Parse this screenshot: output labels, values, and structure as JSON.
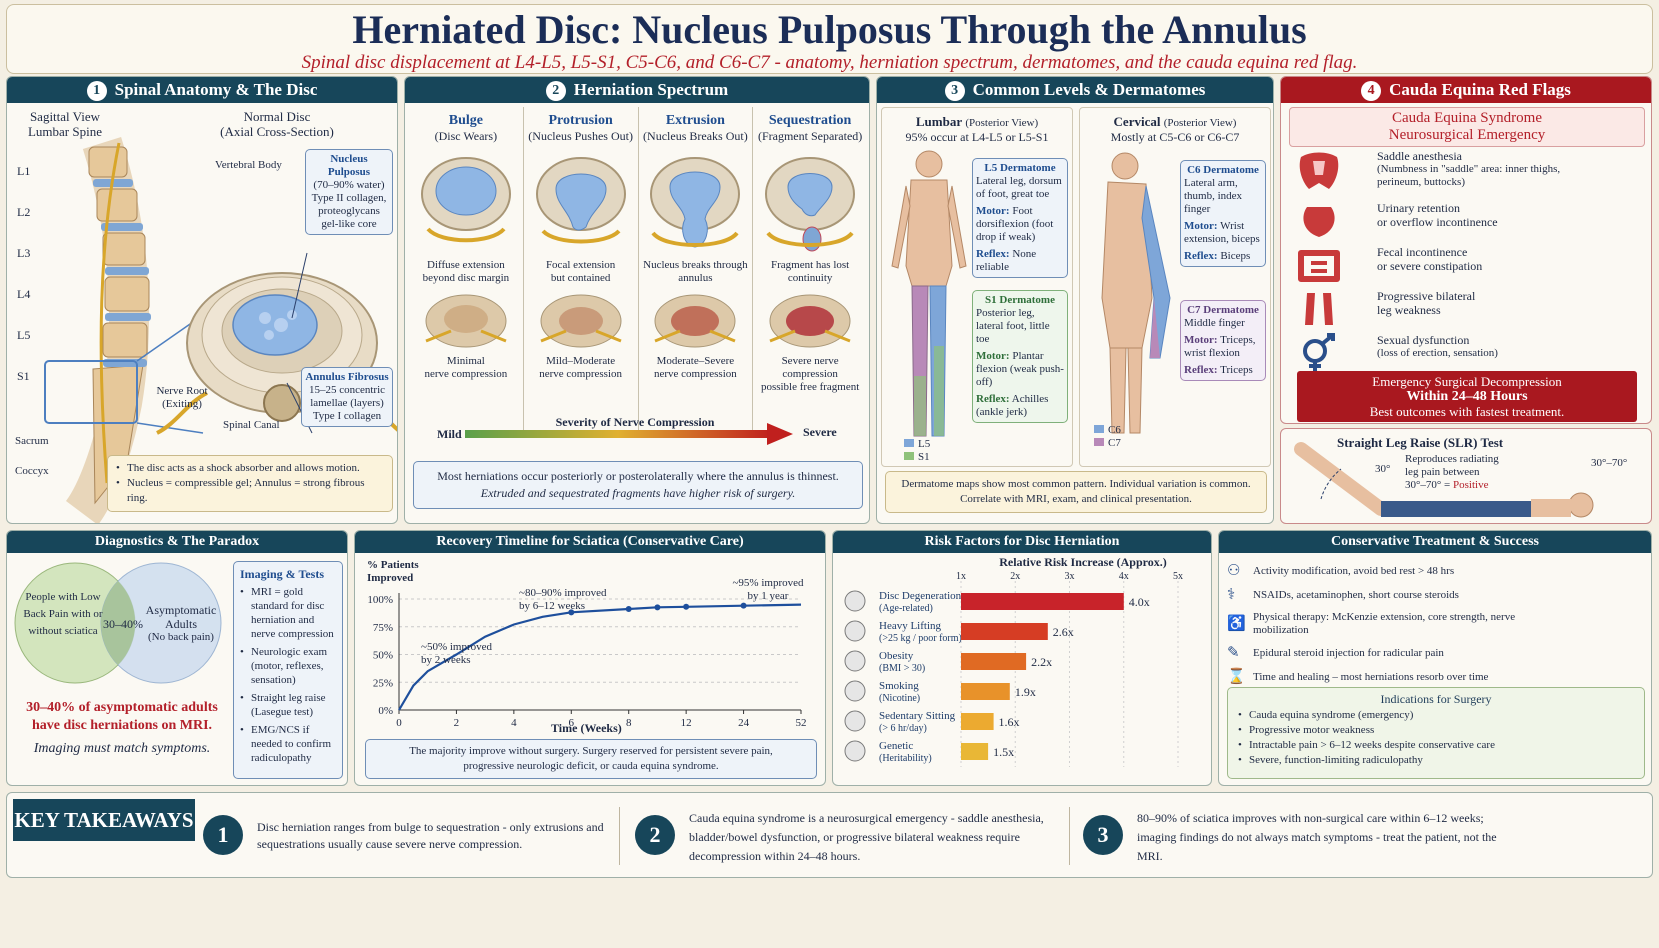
{
  "header": {
    "title": "Herniated Disc: Nucleus Pulposus Through the Annulus",
    "subtitle": "Spinal disc displacement at L4-L5, L5-S1, C5-C6, and C6-C7 - anatomy, herniation spectrum, dermatomes, and the cauda equina red flag."
  },
  "p1": {
    "num": "1",
    "title": "Spinal Anatomy & The Disc",
    "sagittal": "Sagittal View",
    "lumbar": "Lumbar Spine",
    "normal": "Normal Disc",
    "axial": "(Axial Cross-Section)",
    "vertebral_body": "Vertebral Body",
    "levels": [
      "L1",
      "L2",
      "L3",
      "L4",
      "L5",
      "S1"
    ],
    "sacrum": "Sacrum",
    "coccyx": "Coccyx",
    "nerve_root": "Nerve Root",
    "exiting": "(Exiting)",
    "spinal_canal": "Spinal Canal",
    "np": {
      "title": "Nucleus Pulposus",
      "l1": "(70–90% water)",
      "l2": "Type II collagen,",
      "l3": "proteoglycans",
      "l4": "gel-like core"
    },
    "af": {
      "title": "Annulus Fibrosus",
      "l1": "15–25 concentric",
      "l2": "lamellae (layers)",
      "l3": "Type I collagen"
    },
    "notes": [
      "The disc acts as a shock absorber and allows motion.",
      "Nucleus = compressible gel; Annulus = strong fibrous ring."
    ]
  },
  "p2": {
    "num": "2",
    "title": "Herniation Spectrum",
    "stages": [
      {
        "name": "Bulge",
        "sub": "(Disc Wears)",
        "desc1": "Diffuse extension",
        "desc2": "beyond disc margin",
        "comp1": "Minimal",
        "comp2": "nerve compression"
      },
      {
        "name": "Protrusion",
        "sub": "(Nucleus Pushes Out)",
        "desc1": "Focal extension",
        "desc2": "but contained",
        "comp1": "Mild–Moderate",
        "comp2": "nerve compression"
      },
      {
        "name": "Extrusion",
        "sub": "(Nucleus Breaks Out)",
        "desc1": "Nucleus breaks through",
        "desc2": "annulus",
        "comp1": "Moderate–Severe",
        "comp2": "nerve compression"
      },
      {
        "name": "Sequestration",
        "sub": "(Fragment Separated)",
        "desc1": "Fragment has lost",
        "desc2": "continuity",
        "comp1": "Severe nerve compression",
        "comp2": "possible free fragment"
      }
    ],
    "severity": "Severity of Nerve Compression",
    "mild": "Mild",
    "severe": "Severe",
    "note1": "Most herniations occur posteriorly or posterolaterally where the annulus is thinnest.",
    "note2": "Extruded and sequestrated fragments have higher risk of surgery."
  },
  "p3": {
    "num": "3",
    "title": "Common Levels & Dermatomes",
    "lumbar": {
      "title": "Lumbar",
      "view": "(Posterior View)",
      "sub": "95% occur at L4-L5 or L5-S1"
    },
    "cervical": {
      "title": "Cervical",
      "view": "(Posterior View)",
      "sub": "Mostly at C5-C6 or C6-C7"
    },
    "derms": [
      {
        "title": "L5 Dermatome",
        "desc": "Lateral leg, dorsum of foot, great toe",
        "motor_label": "Motor:",
        "motor": "Foot dorsiflexion (foot drop if weak)",
        "reflex_label": "Reflex:",
        "reflex": "None reliable"
      },
      {
        "title": "S1 Dermatome",
        "desc": "Posterior leg, lateral foot, little toe",
        "motor_label": "Motor:",
        "motor": "Plantar flexion (weak push-off)",
        "reflex_label": "Reflex:",
        "reflex": "Achilles (ankle jerk)"
      },
      {
        "title": "C6 Dermatome",
        "desc": "Lateral arm, thumb, index finger",
        "motor_label": "Motor:",
        "motor": "Wrist extension, biceps",
        "reflex_label": "Reflex:",
        "reflex": "Biceps"
      },
      {
        "title": "C7 Dermatome",
        "desc": "Middle finger",
        "motor_label": "Motor:",
        "motor": "Triceps, wrist flexion",
        "reflex_label": "Reflex:",
        "reflex": "Triceps"
      }
    ],
    "legend": [
      "L5",
      "S1",
      "C6",
      "C7"
    ],
    "note1": "Dermatome maps show most common pattern. Individual variation is common.",
    "note2": "Correlate with MRI, exam, and clinical presentation."
  },
  "p4": {
    "num": "4",
    "title": "Cauda Equina Red Flags",
    "ces1": "Cauda Equina Syndrome",
    "ces2": "Neurosurgical Emergency",
    "flags": [
      {
        "t": "Saddle anesthesia",
        "d": "(Numbness in \"saddle\" area: inner thighs, perineum, buttocks)"
      },
      {
        "t": "Urinary retention",
        "d": "or overflow incontinence"
      },
      {
        "t": "Fecal incontinence",
        "d": "or severe constipation"
      },
      {
        "t": "Progressive bilateral",
        "d": "leg weakness"
      },
      {
        "t": "Sexual dysfunction",
        "d": "(loss of erection, sensation)"
      }
    ],
    "em1": "Emergency Surgical Decompression",
    "em2": "Within 24–48 Hours",
    "em3": "Best outcomes with fastest treatment.",
    "slr": {
      "title": "Straight Leg Raise (SLR) Test",
      "a30": "30°",
      "arange": "30°–70°",
      "d1": "Reproduces radiating",
      "d2": "leg pain between",
      "d3": "30°–70° =",
      "pos": "Positive"
    }
  },
  "diag": {
    "title": "Diagnostics & The Paradox",
    "venn_left": "People with Low Back Pain with or without sciatica",
    "venn_mid": "30–40%",
    "venn_right1": "Asymptomatic Adults",
    "venn_right2": "(No back pain)",
    "stat": "30–40% of asymptomatic adults have disc herniations on MRI.",
    "match": "Imaging must match symptoms.",
    "tests_title": "Imaging & Tests",
    "tests": [
      "MRI = gold standard for disc herniation and nerve compression",
      "Neurologic exam (motor, reflexes, sensation)",
      "Straight leg raise (Lasegue test)",
      "EMG/NCS if needed to confirm radiculopathy"
    ]
  },
  "recovery": {
    "title": "Recovery Timeline for Sciatica (Conservative Care)",
    "note1": "The majority improve without surgery. Surgery reserved for persistent severe pain,",
    "note2": "progressive neurologic deficit, or cauda equina syndrome.",
    "chart_data": {
      "type": "line",
      "ylabel": "% Patients Improved",
      "xlabel": "Time (Weeks)",
      "x_ticks": [
        "0",
        "2",
        "4",
        "6",
        "8",
        "12",
        "24",
        "52"
      ],
      "y_ticks": [
        "0%",
        "25%",
        "50%",
        "75%",
        "100%"
      ],
      "ylim": [
        0,
        100
      ],
      "points": [
        {
          "x": 0,
          "y": 0
        },
        {
          "x": 0.5,
          "y": 22
        },
        {
          "x": 1,
          "y": 35
        },
        {
          "x": 2,
          "y": 50
        },
        {
          "x": 3,
          "y": 66
        },
        {
          "x": 4,
          "y": 77
        },
        {
          "x": 5,
          "y": 84
        },
        {
          "x": 6,
          "y": 88
        },
        {
          "x": 8,
          "y": 91
        },
        {
          "x": 10,
          "y": 92.5
        },
        {
          "x": 12,
          "y": 93
        },
        {
          "x": 24,
          "y": 94
        },
        {
          "x": 52,
          "y": 95
        }
      ],
      "markers": [
        {
          "x": 6,
          "y": 88
        },
        {
          "x": 8,
          "y": 91
        },
        {
          "x": 10,
          "y": 92.5
        },
        {
          "x": 12,
          "y": 93
        },
        {
          "x": 24,
          "y": 94
        }
      ],
      "annotations": [
        {
          "text1": "~50% improved",
          "text2": "by 2 weeks"
        },
        {
          "text1": "~80–90% improved",
          "text2": "by 6–12 weeks"
        },
        {
          "text1": "~95% improved",
          "text2": "by 1 year"
        }
      ]
    }
  },
  "risk": {
    "title": "Risk Factors for Disc Herniation",
    "chart_data": {
      "type": "bar",
      "title": "Relative Risk Increase (Approx.)",
      "x_ticks": [
        "1x",
        "2x",
        "3x",
        "4x",
        "5x"
      ],
      "xlim": [
        1,
        5
      ],
      "bars": [
        {
          "name": "Disc Degeneration",
          "sub": "(Age-related)",
          "value": 4.0,
          "label": "4.0x",
          "color": "#c8232a"
        },
        {
          "name": "Heavy Lifting",
          "sub": "(>25 kg / poor form)",
          "value": 2.6,
          "label": "2.6x",
          "color": "#d63d24"
        },
        {
          "name": "Obesity",
          "sub": "(BMI > 30)",
          "value": 2.2,
          "label": "2.2x",
          "color": "#e06a23"
        },
        {
          "name": "Smoking",
          "sub": "(Nicotine)",
          "value": 1.9,
          "label": "1.9x",
          "color": "#e8922a"
        },
        {
          "name": "Sedentary Sitting",
          "sub": "(> 6 hr/day)",
          "value": 1.6,
          "label": "1.6x",
          "color": "#ecaa30"
        },
        {
          "name": "Genetic",
          "sub": "(Heritability)",
          "value": 1.5,
          "label": "1.5x",
          "color": "#e9b736"
        }
      ]
    }
  },
  "cons": {
    "title": "Conservative Treatment & Success",
    "items": [
      "Activity modification, avoid bed rest > 48 hrs",
      "NSAIDs, acetaminophen, short course steroids",
      "Physical therapy: McKenzie extension, core strength, nerve mobilization",
      "Epidural steroid injection for radicular pain",
      "Time and healing – most herniations resorb over time"
    ],
    "ind_title": "Indications for Surgery",
    "ind": [
      "Cauda equina syndrome (emergency)",
      "Progressive motor weakness",
      "Intractable pain > 6–12 weeks despite conservative care",
      "Severe, function-limiting radiculopathy"
    ]
  },
  "takeaways": {
    "label": "KEY TAKEAWAYS",
    "items": [
      {
        "n": "1",
        "t": "Disc herniation ranges from bulge to sequestration - only extrusions and sequestrations usually cause severe nerve compression."
      },
      {
        "n": "2",
        "t": "Cauda equina syndrome is a neurosurgical emergency - saddle anesthesia, bladder/bowel dysfunction, or progressive bilateral weakness require decompression within 24–48 hours."
      },
      {
        "n": "3",
        "t": "80–90% of sciatica improves with non-surgical care within 6–12 weeks; imaging findings do not always match symptoms - treat the patient, not the MRI."
      }
    ]
  }
}
